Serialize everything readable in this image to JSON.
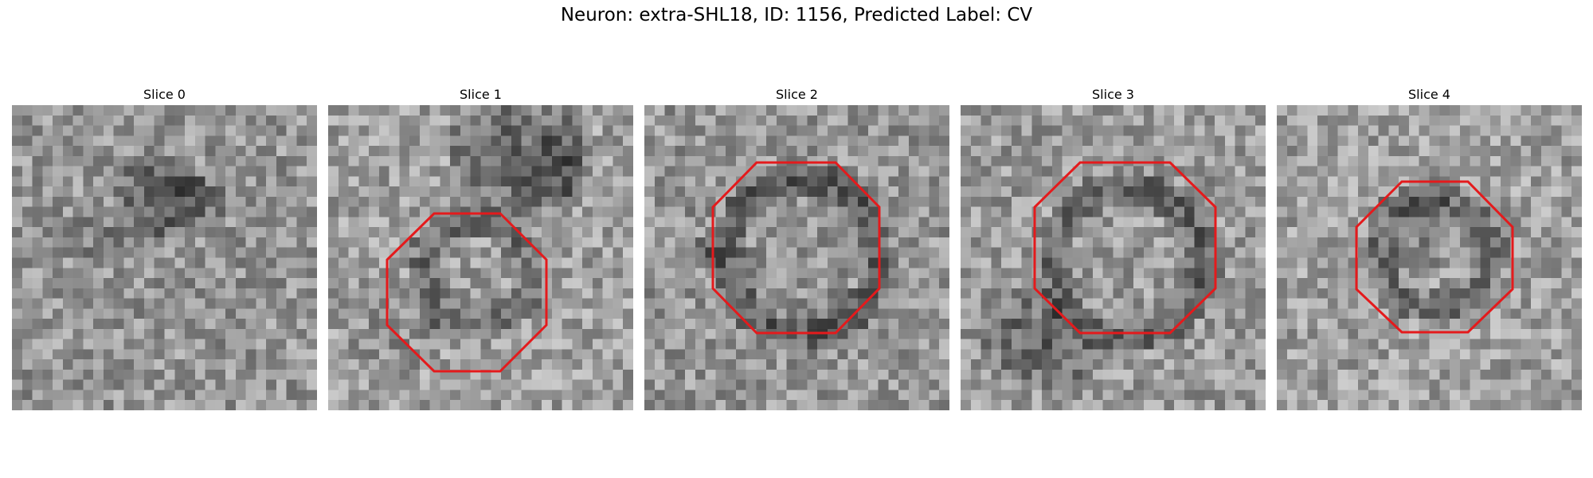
{
  "figure": {
    "title": "Neuron: extra-SHL18, ID: 1156, Predicted Label: CV",
    "overlay_color": "#e41a1c"
  },
  "panels": [
    {
      "title": "Slice 0",
      "has_octagon": false
    },
    {
      "title": "Slice 1",
      "has_octagon": true
    },
    {
      "title": "Slice 2",
      "has_octagon": true
    },
    {
      "title": "Slice 3",
      "has_octagon": true
    },
    {
      "title": "Slice 4",
      "has_octagon": true
    }
  ]
}
